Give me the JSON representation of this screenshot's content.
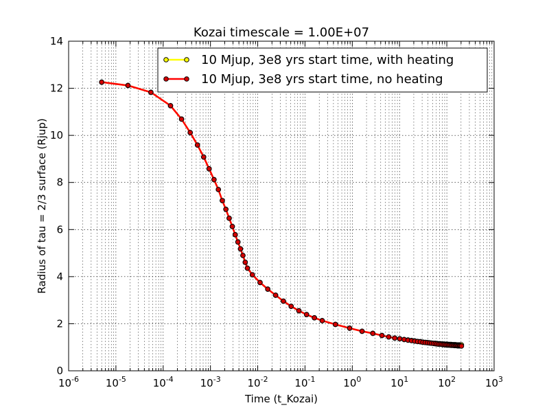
{
  "chart_data": {
    "type": "line",
    "title": "Kozai timescale = 1.00E+07",
    "xlabel": "Time (t_Kozai)",
    "ylabel": "Radius of tau = 2/3 surface (Rjup)",
    "xscale": "log",
    "xlim": [
      1e-06,
      1000
    ],
    "ylim": [
      0,
      14
    ],
    "grid": true,
    "legend_position": "top-right",
    "x_tick_labels": [
      {
        "base": "10",
        "exp": "-6",
        "value": 1e-06
      },
      {
        "base": "10",
        "exp": "-5",
        "value": 1e-05
      },
      {
        "base": "10",
        "exp": "-4",
        "value": 0.0001
      },
      {
        "base": "10",
        "exp": "-3",
        "value": 0.001
      },
      {
        "base": "10",
        "exp": "-2",
        "value": 0.01
      },
      {
        "base": "10",
        "exp": "-1",
        "value": 0.1
      },
      {
        "base": "10",
        "exp": "0",
        "value": 1
      },
      {
        "base": "10",
        "exp": "1",
        "value": 10
      },
      {
        "base": "10",
        "exp": "2",
        "value": 100
      },
      {
        "base": "10",
        "exp": "3",
        "value": 1000
      }
    ],
    "y_tick_labels": [
      "0",
      "2",
      "4",
      "6",
      "8",
      "10",
      "12",
      "14"
    ],
    "series": [
      {
        "name": "10 Mjup, 3e8 yrs start time, with heating",
        "line_color": "#ffff00",
        "marker_color": "#ffff00",
        "x": [
          5e-06,
          1.8e-05,
          5.5e-05,
          0.000143,
          0.000245,
          0.000373,
          0.000531,
          0.000719,
          0.000937,
          0.00119,
          0.00147,
          0.00178,
          0.00212,
          0.00249,
          0.0029,
          0.00334,
          0.00381,
          0.00432,
          0.00486,
          0.00544,
          0.00605,
          0.00771,
          0.0112,
          0.0163,
          0.0239,
          0.0349,
          0.0509,
          0.0743,
          0.108,
          0.158,
          0.231,
          0.44,
          0.88,
          1.61,
          2.72,
          4.24,
          5.9,
          7.9,
          10.1,
          12.5,
          15.1,
          17.9,
          20.9,
          24.1,
          27.5,
          31.1,
          34.9,
          38.9,
          43.1,
          47.5,
          52.1,
          56.9,
          61.9,
          67.1,
          72.5,
          78.1,
          83.9,
          89.9,
          96.1,
          102.5,
          109.1,
          115.9,
          122.9,
          130.1,
          137.5,
          145.1,
          152.9,
          160.9,
          169.1,
          177.5,
          186.1,
          194.9,
          204
        ],
        "y": [
          12.26,
          12.12,
          11.83,
          11.26,
          10.69,
          10.12,
          9.59,
          9.08,
          8.58,
          8.12,
          7.7,
          7.23,
          6.86,
          6.48,
          6.13,
          5.78,
          5.47,
          5.18,
          4.9,
          4.61,
          4.36,
          4.08,
          3.75,
          3.47,
          3.21,
          2.96,
          2.74,
          2.55,
          2.39,
          2.25,
          2.13,
          1.97,
          1.81,
          1.68,
          1.59,
          1.5,
          1.44,
          1.39,
          1.36,
          1.33,
          1.31,
          1.29,
          1.27,
          1.25,
          1.24,
          1.22,
          1.21,
          1.2,
          1.19,
          1.18,
          1.17,
          1.17,
          1.16,
          1.15,
          1.15,
          1.14,
          1.14,
          1.13,
          1.13,
          1.13,
          1.12,
          1.12,
          1.12,
          1.11,
          1.11,
          1.11,
          1.11,
          1.1,
          1.1,
          1.1,
          1.1,
          1.1,
          1.1
        ]
      },
      {
        "name": "10 Mjup, 3e8 yrs start time, no heating",
        "line_color": "#ff0000",
        "marker_color": "#d40000",
        "x": [
          5e-06,
          1.8e-05,
          5.5e-05,
          0.000143,
          0.000245,
          0.000373,
          0.000531,
          0.000719,
          0.000937,
          0.00119,
          0.00147,
          0.00178,
          0.00212,
          0.00249,
          0.0029,
          0.00334,
          0.00381,
          0.00432,
          0.00486,
          0.00544,
          0.00605,
          0.00771,
          0.0112,
          0.0163,
          0.0239,
          0.0349,
          0.0509,
          0.0743,
          0.108,
          0.158,
          0.231,
          0.44,
          0.88,
          1.61,
          2.72,
          4.24,
          5.9,
          7.9,
          10.1,
          12.5,
          15.1,
          17.9,
          20.9,
          24.1,
          27.5,
          31.1,
          34.9,
          38.9,
          43.1,
          47.5,
          52.1,
          56.9,
          61.9,
          67.1,
          72.5,
          78.1,
          83.9,
          89.9,
          96.1,
          102.5,
          109.1,
          115.9,
          122.9,
          130.1,
          137.5,
          145.1,
          152.9,
          160.9,
          169.1,
          177.5,
          186.1,
          194.9,
          204
        ],
        "y": [
          12.26,
          12.12,
          11.83,
          11.26,
          10.69,
          10.12,
          9.59,
          9.08,
          8.58,
          8.12,
          7.7,
          7.23,
          6.86,
          6.48,
          6.13,
          5.78,
          5.47,
          5.18,
          4.9,
          4.61,
          4.36,
          4.08,
          3.75,
          3.47,
          3.21,
          2.96,
          2.74,
          2.55,
          2.39,
          2.25,
          2.13,
          1.97,
          1.81,
          1.68,
          1.59,
          1.5,
          1.44,
          1.39,
          1.36,
          1.33,
          1.3,
          1.28,
          1.26,
          1.24,
          1.23,
          1.21,
          1.2,
          1.19,
          1.18,
          1.17,
          1.16,
          1.15,
          1.14,
          1.13,
          1.13,
          1.12,
          1.11,
          1.11,
          1.1,
          1.1,
          1.09,
          1.09,
          1.08,
          1.08,
          1.08,
          1.07,
          1.07,
          1.07,
          1.06,
          1.06,
          1.06,
          1.06,
          1.05
        ]
      }
    ]
  }
}
